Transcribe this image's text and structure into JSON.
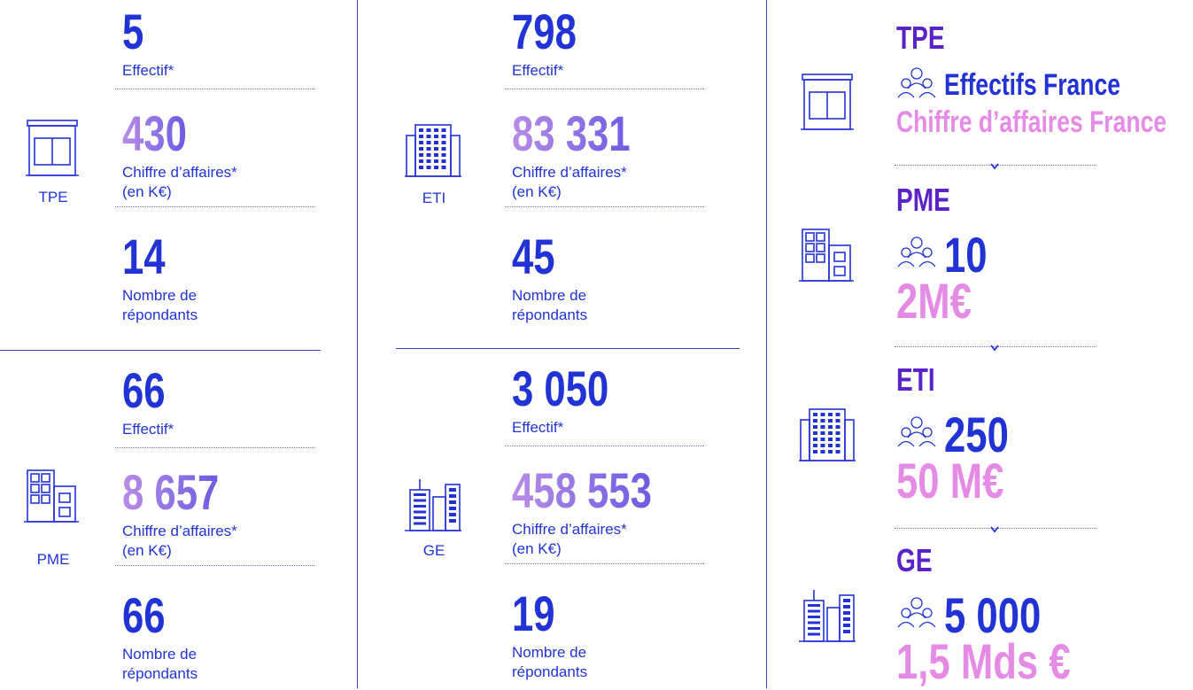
{
  "panels": [
    {
      "name": "TPE",
      "stats": [
        {
          "value": "5",
          "label": [
            "Effectif*"
          ]
        },
        {
          "value": "430",
          "label": [
            "Chiffre d’affaires*",
            "(en K€)"
          ]
        },
        {
          "value": "14",
          "label": [
            "Nombre de",
            "répondants"
          ]
        }
      ]
    },
    {
      "name": "PME",
      "stats": [
        {
          "value": "66",
          "label": [
            "Effectif*"
          ]
        },
        {
          "value": "8 657",
          "label": [
            "Chiffre d’affaires*",
            "(en K€)"
          ]
        },
        {
          "value": "66",
          "label": [
            "Nombre de",
            "répondants"
          ]
        }
      ]
    },
    {
      "name": "ETI",
      "stats": [
        {
          "value": "798",
          "label": [
            "Effectif*"
          ]
        },
        {
          "value": "83 331",
          "label": [
            "Chiffre d’affaires*",
            "(en K€)"
          ]
        },
        {
          "value": "45",
          "label": [
            "Nombre de",
            "répondants"
          ]
        }
      ]
    },
    {
      "name": "GE",
      "stats": [
        {
          "value": "3 050",
          "label": [
            "Effectif*"
          ]
        },
        {
          "value": "458 553",
          "label": [
            "Chiffre d’affaires*",
            "(en K€)"
          ]
        },
        {
          "value": "19",
          "label": [
            "Nombre de",
            "répondants"
          ]
        }
      ]
    }
  ],
  "legend": {
    "tiers": [
      {
        "name": "TPE",
        "headcount": "Effectifs France",
        "revenue": "Chiffre d’affaires France"
      },
      {
        "name": "PME",
        "headcount": "10",
        "revenue": "2M€"
      },
      {
        "name": "ETI",
        "headcount": "250",
        "revenue": "50 M€"
      },
      {
        "name": "GE",
        "headcount": "5 000",
        "revenue": "1,5 Mds €"
      }
    ]
  }
}
